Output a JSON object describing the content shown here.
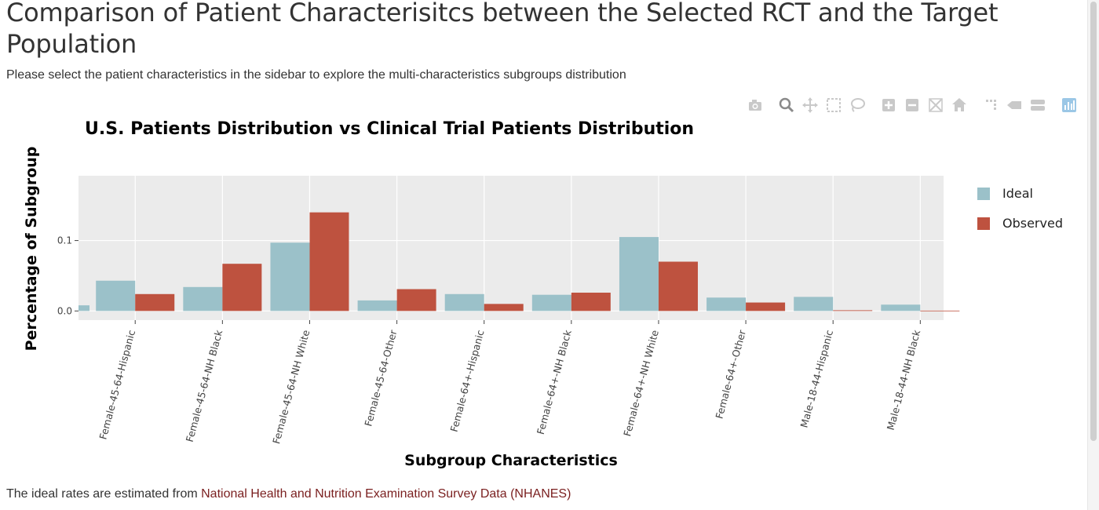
{
  "page": {
    "title": "Comparison of Patient Characterisitcs between the Selected RCT and the Target Population",
    "subtitle": "Please select the patient characteristics in the sidebar to explore the multi-characteristics subgroups distribution",
    "footer_prefix": "The ideal rates are estimated from ",
    "footer_link": "National Health and Nutrition Examination Survey Data (NHANES)"
  },
  "modebar": [
    {
      "icon": "camera-icon",
      "label": "Download plot as a png"
    },
    {
      "icon": "zoom-icon",
      "label": "Zoom"
    },
    {
      "icon": "pan-icon",
      "label": "Pan"
    },
    {
      "icon": "box-select-icon",
      "label": "Box Select"
    },
    {
      "icon": "lasso-select-icon",
      "label": "Lasso Select"
    },
    {
      "icon": "zoom-in-icon",
      "label": "Zoom in"
    },
    {
      "icon": "zoom-out-icon",
      "label": "Zoom out"
    },
    {
      "icon": "autoscale-icon",
      "label": "Autoscale"
    },
    {
      "icon": "home-icon",
      "label": "Reset axes"
    },
    {
      "icon": "spike-lines-icon",
      "label": "Toggle Spike Lines"
    },
    {
      "icon": "hover-closest-icon",
      "label": "Show closest data on hover"
    },
    {
      "icon": "hover-compare-icon",
      "label": "Compare data on hover"
    },
    {
      "icon": "plotly-logo-icon",
      "label": "Produced with Plotly"
    }
  ],
  "colors": {
    "ideal": "#9bc1c9",
    "observed": "#be523f",
    "panel": "#ebebeb",
    "grid": "#ffffff"
  },
  "chart_data": {
    "type": "bar",
    "title": "U.S. Patients Distribution vs Clinical Trial Patients Distribution",
    "xlabel": "Subgroup Characteristics",
    "ylabel": "Percentage of Subgroup",
    "ylim": [
      -0.013,
      0.192
    ],
    "yticks": [
      0.0,
      0.1
    ],
    "ytick_labels": [
      "0.0",
      "0.1"
    ],
    "grid": true,
    "legend_position": "right",
    "categories": [
      "Female-45-64-Hispanic",
      "Female-45-64-NH Black",
      "Female-45-64-NH White",
      "Female-45-64-Other",
      "Female-64+-Hispanic",
      "Female-64+-NH Black",
      "Female-64+-NH White",
      "Female-64+-Other",
      "Male-18-44-Hispanic",
      "Male-18-44-NH Black"
    ],
    "series": [
      {
        "name": "Ideal",
        "values": [
          0.043,
          0.034,
          0.097,
          0.015,
          0.024,
          0.023,
          0.105,
          0.019,
          0.02,
          0.009
        ]
      },
      {
        "name": "Observed",
        "values": [
          0.024,
          0.067,
          0.14,
          0.031,
          0.01,
          0.026,
          0.07,
          0.012,
          0.001,
          0.0005
        ]
      }
    ]
  }
}
